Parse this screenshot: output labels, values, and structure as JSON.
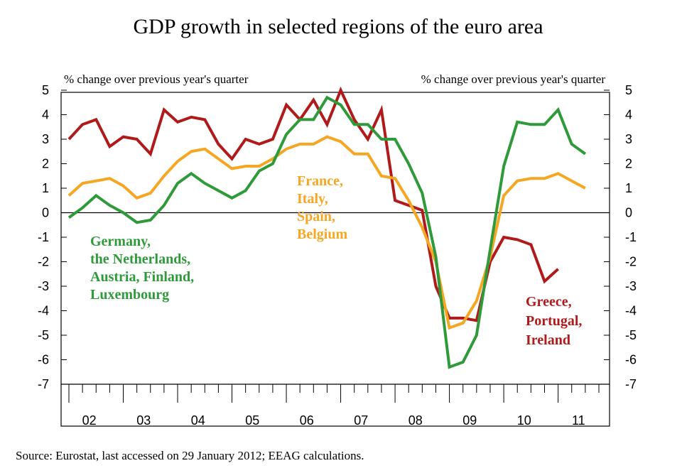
{
  "chart_data": {
    "type": "line",
    "title": "GDP growth in selected regions of the euro area",
    "subtitle_left": "% change over previous year's quarter",
    "subtitle_right": "% change over previous year's quarter",
    "source": "Source: Eurostat, last accessed on 29 January 2012; EEAG calculations.",
    "ylim": [
      -7,
      5
    ],
    "y_ticks": [
      "5",
      "4",
      "3",
      "2",
      "1",
      "0",
      "-1",
      "-2",
      "-3",
      "-4",
      "-5",
      "-6",
      "-7"
    ],
    "x_tick_labels": [
      "02",
      "03",
      "04",
      "05",
      "06",
      "07",
      "08",
      "09",
      "10",
      "11"
    ],
    "x_start_year": 2002,
    "quarters": 40,
    "series": [
      {
        "name": "Greece, Portugal, Ireland",
        "label_lines": [
          "Greece,",
          "Portugal,",
          "Ireland"
        ],
        "color": "#b01a1a",
        "start_index": 0,
        "values": [
          3.0,
          3.6,
          3.8,
          2.7,
          3.1,
          3.0,
          2.4,
          4.2,
          3.7,
          3.9,
          3.8,
          2.8,
          2.2,
          3.0,
          2.8,
          3.0,
          4.4,
          3.8,
          4.6,
          3.6,
          5.0,
          3.8,
          3.0,
          4.2,
          0.5,
          0.3,
          0.1,
          -3.0,
          -4.3,
          -4.3,
          -4.4,
          -2.0,
          -1.0,
          -1.1,
          -1.3,
          -2.8,
          -2.3
        ]
      },
      {
        "name": "France, Italy, Spain, Belgium",
        "label_lines": [
          "France,",
          "Italy,",
          "Spain,",
          "Belgium"
        ],
        "color": "#f5a623",
        "start_index": 0,
        "values": [
          0.7,
          1.2,
          1.3,
          1.4,
          1.1,
          0.6,
          0.8,
          1.5,
          2.1,
          2.5,
          2.6,
          2.2,
          1.8,
          1.9,
          1.9,
          2.2,
          2.6,
          2.8,
          2.8,
          3.1,
          2.9,
          2.4,
          2.4,
          1.5,
          1.4,
          0.5,
          -0.6,
          -2.0,
          -4.7,
          -4.5,
          -3.6,
          -1.8,
          0.7,
          1.3,
          1.4,
          1.4,
          1.6,
          1.3,
          1.0
        ]
      },
      {
        "name": "Germany, the Netherlands, Austria, Finland, Luxembourg",
        "label_lines": [
          "Germany,",
          "the Netherlands,",
          "Austria, Finland,",
          "Luxembourg"
        ],
        "color": "#2e9a3a",
        "start_index": 0,
        "values": [
          -0.2,
          0.2,
          0.7,
          0.3,
          0.0,
          -0.4,
          -0.3,
          0.3,
          1.2,
          1.6,
          1.2,
          0.9,
          0.6,
          0.9,
          1.7,
          2.0,
          3.2,
          3.8,
          3.8,
          4.7,
          4.4,
          3.6,
          3.6,
          3.0,
          3.0,
          2.0,
          0.8,
          -1.8,
          -6.3,
          -6.1,
          -5.0,
          -1.5,
          1.9,
          3.7,
          3.6,
          3.6,
          4.2,
          2.8,
          2.4
        ]
      }
    ]
  }
}
